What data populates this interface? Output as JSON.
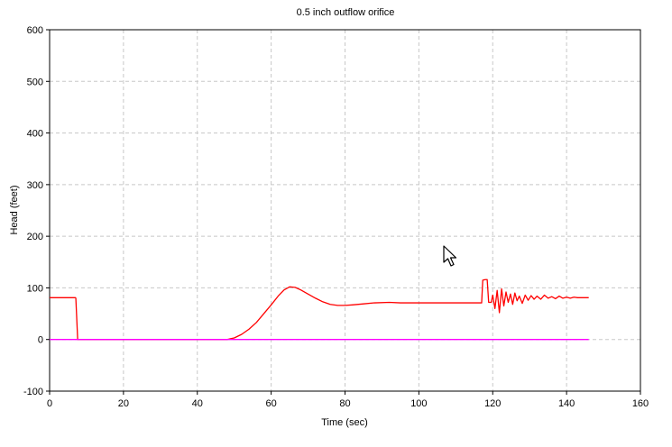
{
  "chart_data": {
    "type": "line",
    "title": "0.5 inch outflow orifice",
    "xlabel": "Time (sec)",
    "ylabel": "Head (feet)",
    "xlim": [
      0,
      160
    ],
    "ylim": [
      -100,
      600
    ],
    "xticks": [
      0,
      20,
      40,
      60,
      80,
      100,
      120,
      140,
      160
    ],
    "yticks": [
      -100,
      0,
      100,
      200,
      300,
      400,
      500,
      600
    ],
    "grid": true,
    "legend": "none",
    "series": [
      {
        "color": "#ff0000",
        "points": [
          [
            0,
            81
          ],
          [
            7,
            81
          ],
          [
            7.1,
            80
          ],
          [
            7.6,
            0
          ],
          [
            48,
            0
          ],
          [
            50,
            3
          ],
          [
            52,
            10
          ],
          [
            54,
            20
          ],
          [
            56,
            33
          ],
          [
            58,
            50
          ],
          [
            60,
            67
          ],
          [
            62,
            85
          ],
          [
            63.5,
            96
          ],
          [
            65,
            102
          ],
          [
            66.5,
            101
          ],
          [
            68,
            96
          ],
          [
            70,
            88
          ],
          [
            72,
            80
          ],
          [
            74,
            73
          ],
          [
            76,
            68
          ],
          [
            78,
            66
          ],
          [
            80,
            66
          ],
          [
            82,
            67
          ],
          [
            85,
            69
          ],
          [
            88,
            71
          ],
          [
            92,
            72
          ],
          [
            95,
            71
          ],
          [
            100,
            71
          ],
          [
            110,
            71
          ],
          [
            117,
            71
          ],
          [
            117.3,
            115
          ],
          [
            118,
            116
          ],
          [
            118.5,
            116
          ],
          [
            118.9,
            72
          ],
          [
            119.6,
            72
          ],
          [
            120,
            86
          ],
          [
            120.6,
            60
          ],
          [
            121.2,
            95
          ],
          [
            121.8,
            52
          ],
          [
            122.4,
            98
          ],
          [
            123,
            65
          ],
          [
            123.6,
            92
          ],
          [
            124.2,
            72
          ],
          [
            124.8,
            88
          ],
          [
            125.4,
            68
          ],
          [
            126,
            90
          ],
          [
            126.6,
            75
          ],
          [
            127.2,
            84
          ],
          [
            128,
            70
          ],
          [
            128.8,
            86
          ],
          [
            129.6,
            76
          ],
          [
            130.4,
            85
          ],
          [
            131.2,
            78
          ],
          [
            132,
            84
          ],
          [
            133,
            78
          ],
          [
            134,
            86
          ],
          [
            135,
            80
          ],
          [
            136,
            83
          ],
          [
            137,
            79
          ],
          [
            138,
            84
          ],
          [
            139,
            80
          ],
          [
            140,
            82
          ],
          [
            141,
            80
          ],
          [
            142,
            82
          ],
          [
            143,
            81
          ],
          [
            146,
            81
          ]
        ]
      },
      {
        "color": "#ff00ff",
        "points": [
          [
            0,
            0
          ],
          [
            146,
            0
          ]
        ]
      }
    ]
  }
}
